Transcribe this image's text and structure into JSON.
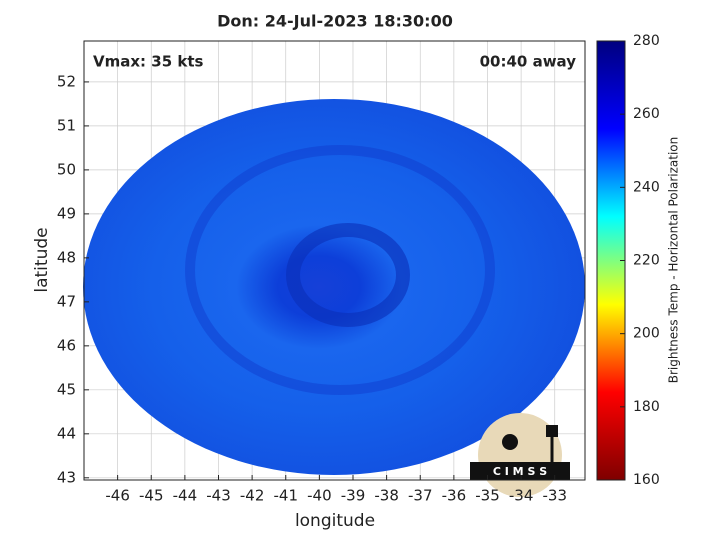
{
  "chart_data": {
    "type": "image",
    "title": "Don: 24-Jul-2023 18:30:00",
    "annotations": [
      "Vmax: 35 kts",
      "00:40 away"
    ],
    "x_label": "longitude",
    "y_label": "latitude",
    "xlim": [
      -47,
      -32.1
    ],
    "xticks": [
      -46,
      -45,
      -44,
      -43,
      -42,
      -41,
      -40,
      -39,
      -38,
      -37,
      -36,
      -35,
      -34,
      -33
    ],
    "ylim": [
      42.95,
      52.93
    ],
    "yticks": [
      43,
      44,
      45,
      46,
      47,
      48,
      49,
      50,
      51,
      52
    ],
    "grid": true,
    "colorbar": {
      "label": "Brightness Temp - Horizontal Polarization",
      "lim": [
        160,
        280
      ],
      "ticks": [
        160,
        180,
        200,
        220,
        240,
        260,
        280
      ],
      "colors": [
        "#7f0000",
        "#ff0000",
        "#ffff00",
        "#00ffff",
        "#0000ff",
        "#00007f"
      ]
    },
    "logo_text": "C I M S S"
  }
}
